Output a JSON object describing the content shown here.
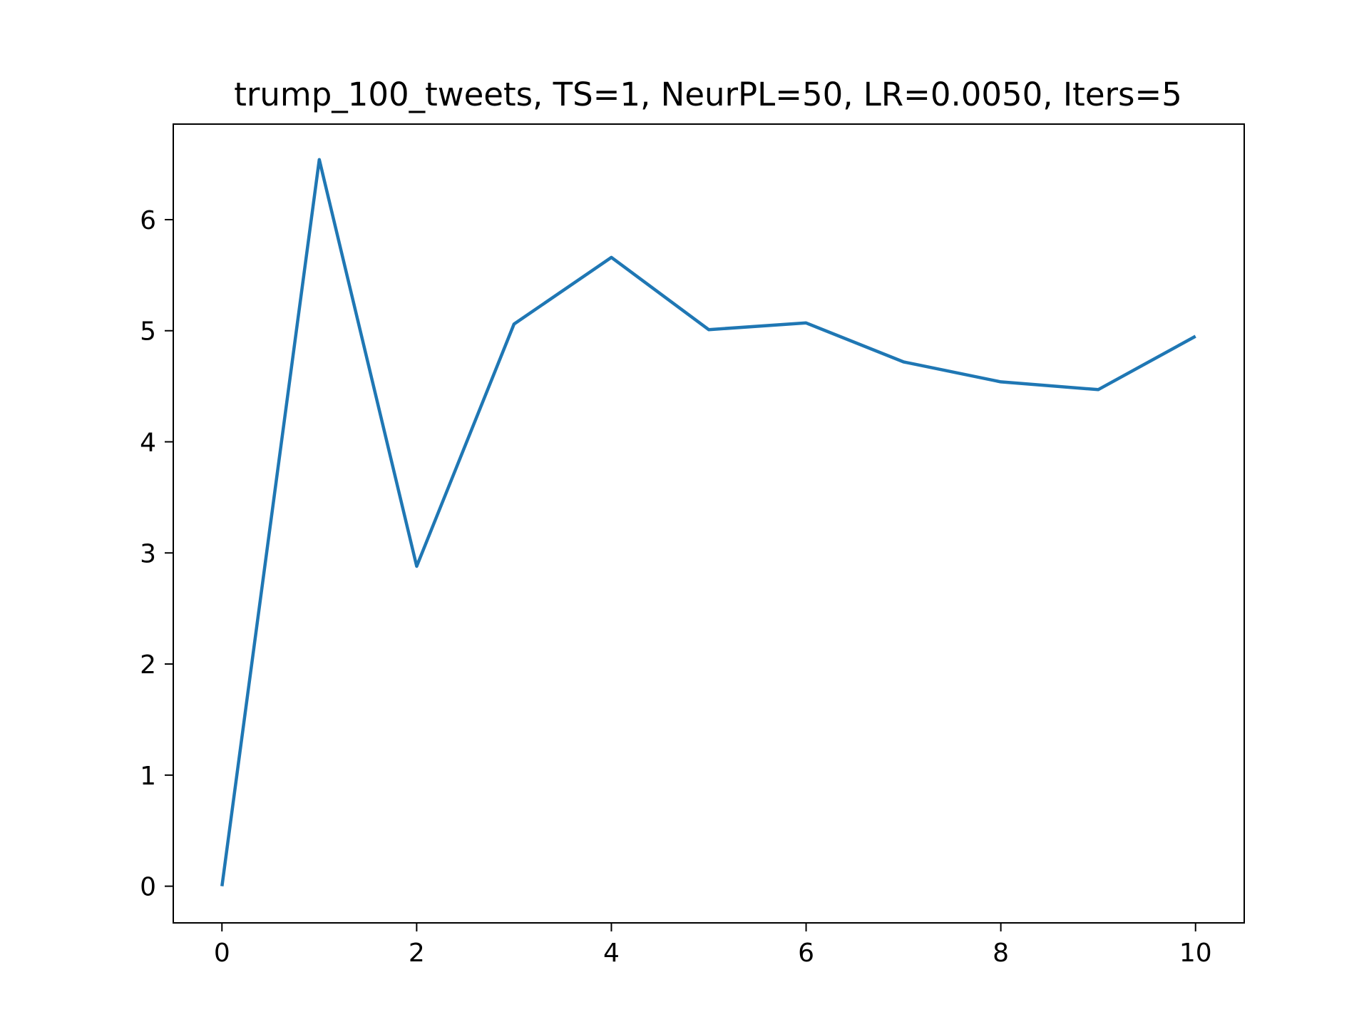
{
  "chart_data": {
    "type": "line",
    "title": "trump_100_tweets, TS=1, NeurPL=50, LR=0.0050, Iters=5",
    "xlabel": "",
    "ylabel": "",
    "xlim": [
      -0.5,
      10.5
    ],
    "ylim": [
      -0.33,
      6.86
    ],
    "xticks": [
      0,
      2,
      4,
      6,
      8,
      10
    ],
    "yticks": [
      0,
      1,
      2,
      3,
      4,
      5,
      6
    ],
    "grid": false,
    "series": [
      {
        "color": "#1f77b4",
        "x": [
          0,
          1,
          2,
          3,
          4,
          5,
          6,
          7,
          8,
          9,
          10
        ],
        "y": [
          0.0,
          6.54,
          2.88,
          5.06,
          5.66,
          5.01,
          5.07,
          4.72,
          4.54,
          4.47,
          4.95
        ]
      }
    ]
  }
}
